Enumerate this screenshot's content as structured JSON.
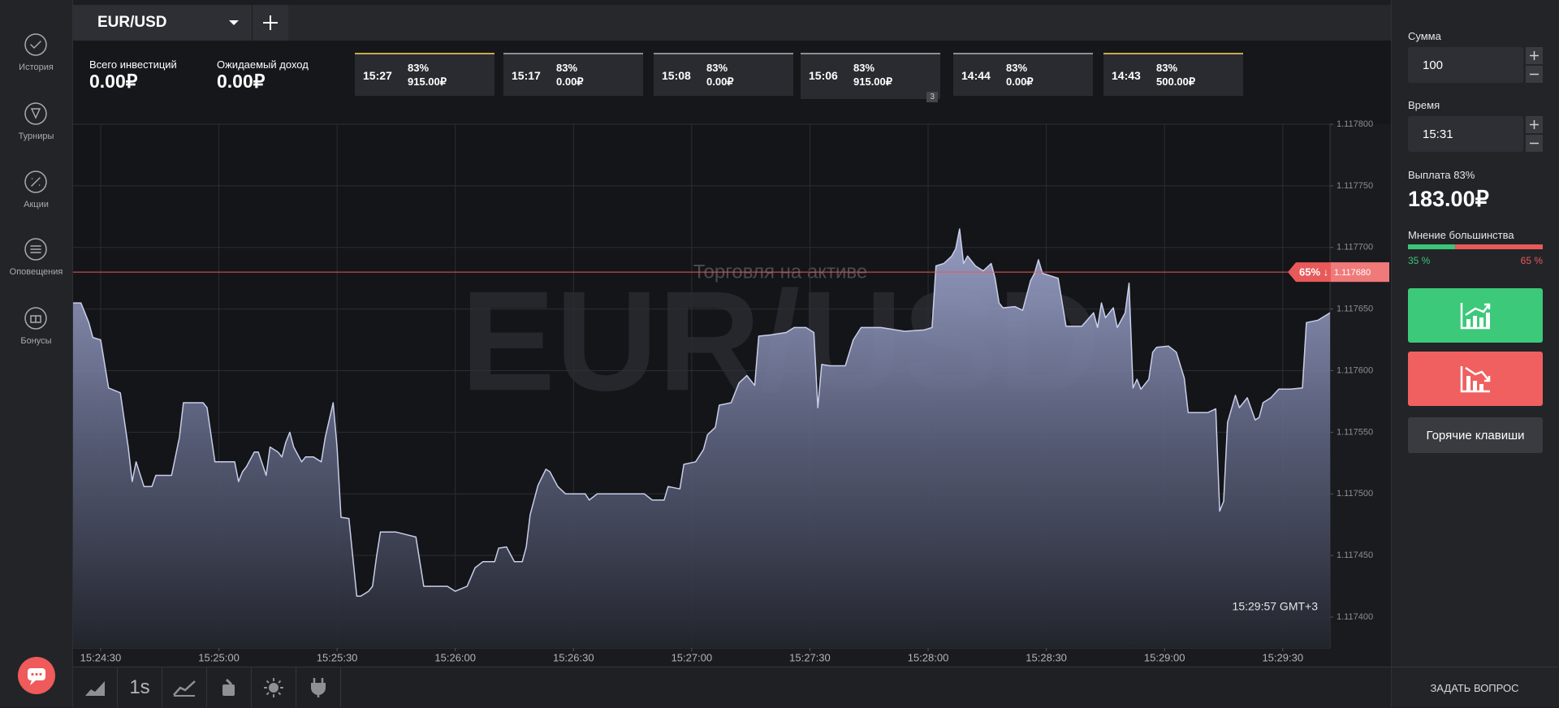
{
  "sidebar": {
    "items": [
      "История",
      "Турниры",
      "Акции",
      "Оповещения",
      "Бонусы"
    ]
  },
  "tab": {
    "asset": "EUR/USD"
  },
  "summary": [
    {
      "label": "Всего инвестиций",
      "value": "0.00₽"
    },
    {
      "label": "Ожидаемый доход",
      "value": "0.00₽"
    }
  ],
  "trades": [
    {
      "time": "15:27",
      "payout": "83%",
      "amount": "915.00₽",
      "border_color": "#c9a94c"
    },
    {
      "time": "15:17",
      "payout": "83%",
      "amount": "0.00₽",
      "border_color": "#8d8e93"
    },
    {
      "time": "15:08",
      "payout": "83%",
      "amount": "0.00₽",
      "border_color": "#8d8e93"
    },
    {
      "time": "15:06",
      "payout": "83%",
      "amount": "915.00₽",
      "border_color": "#8d8e93",
      "badge": "3"
    },
    {
      "time": "14:44",
      "payout": "83%",
      "amount": "0.00₽",
      "border_color": "#8d8e93"
    },
    {
      "time": "14:43",
      "payout": "83%",
      "amount": "500.00₽",
      "border_color": "#c9a94c"
    }
  ],
  "chart_data": {
    "type": "area",
    "watermark": "EUR/USD",
    "caption": "Торговля на активе",
    "clock": "15:29:57 GMT+3",
    "color": "#c9cee9",
    "grid": true,
    "x": [
      "15:24:23",
      "15:24:25",
      "15:24:27",
      "15:24:28",
      "15:24:30",
      "15:24:32",
      "15:24:35",
      "15:24:37",
      "15:24:38",
      "15:24:39",
      "15:24:41",
      "15:24:43",
      "15:24:44",
      "15:24:48",
      "15:24:50",
      "15:24:51",
      "15:24:56",
      "15:24:57",
      "15:24:59",
      "15:25:04",
      "15:25:05",
      "15:25:06",
      "15:25:07",
      "15:25:09",
      "15:25:10",
      "15:25:12",
      "15:25:13",
      "15:25:15",
      "15:25:16",
      "15:25:17",
      "15:25:18",
      "15:25:19",
      "15:25:21",
      "15:25:22",
      "15:25:24",
      "15:25:26",
      "15:25:27",
      "15:25:29",
      "15:25:30",
      "15:25:31",
      "15:25:33",
      "15:25:35",
      "15:25:36",
      "15:25:38",
      "15:25:39",
      "15:25:40",
      "15:25:41",
      "15:25:45",
      "15:25:50",
      "15:25:52",
      "15:25:58",
      "15:26:00",
      "15:26:03",
      "15:26:05",
      "15:26:07",
      "15:26:10",
      "15:26:11",
      "15:26:13",
      "15:26:15",
      "15:26:17",
      "15:26:18",
      "15:26:19",
      "15:26:21",
      "15:26:23",
      "15:26:24",
      "15:26:26",
      "15:26:28",
      "15:26:33",
      "15:26:34",
      "15:26:36",
      "15:26:48",
      "15:26:50",
      "15:26:53",
      "15:26:54",
      "15:26:57",
      "15:26:58",
      "15:27:01",
      "15:27:03",
      "15:27:04",
      "15:27:06",
      "15:27:07",
      "15:27:10",
      "15:27:12",
      "15:27:14",
      "15:27:16",
      "15:27:17",
      "15:27:20",
      "15:27:24",
      "15:27:26",
      "15:27:29",
      "15:27:31",
      "15:27:32",
      "15:27:33",
      "15:27:35",
      "15:27:39",
      "15:27:41",
      "15:27:43",
      "15:27:48",
      "15:27:54",
      "15:27:59",
      "15:28:01",
      "15:28:02",
      "15:28:04",
      "15:28:06",
      "15:28:07",
      "15:28:08",
      "15:28:09",
      "15:28:10",
      "15:28:12",
      "15:28:14",
      "15:28:16",
      "15:28:17",
      "15:28:18",
      "15:28:19",
      "15:28:22",
      "15:28:24",
      "15:28:26",
      "15:28:27",
      "15:28:28",
      "15:28:29",
      "15:28:33",
      "15:28:35",
      "15:28:39",
      "15:28:42",
      "15:28:43",
      "15:28:44",
      "15:28:45",
      "15:28:47",
      "15:28:48",
      "15:28:50",
      "15:28:51",
      "15:28:52",
      "15:28:53",
      "15:28:54",
      "15:28:56",
      "15:28:57",
      "15:28:58",
      "15:29:01",
      "15:29:03",
      "15:29:05",
      "15:29:06",
      "15:29:11",
      "15:29:13",
      "15:29:14",
      "15:29:15",
      "15:29:16",
      "15:29:18",
      "15:29:19",
      "15:29:21",
      "15:29:23",
      "15:29:24",
      "15:29:25",
      "15:29:27",
      "15:29:29",
      "15:29:32",
      "15:29:35",
      "15:29:36",
      "15:29:39",
      "15:29:42"
    ],
    "values": [
      1.117655,
      1.117655,
      1.117639,
      1.117627,
      1.117625,
      1.117586,
      1.117582,
      1.117538,
      1.11751,
      1.117526,
      1.117506,
      1.117506,
      1.117515,
      1.117515,
      1.117546,
      1.117574,
      1.117574,
      1.11757,
      1.117526,
      1.117526,
      1.11751,
      1.117518,
      1.117522,
      1.117534,
      1.117534,
      1.117515,
      1.117538,
      1.117534,
      1.11753,
      1.117542,
      1.11755,
      1.117538,
      1.117526,
      1.11753,
      1.11753,
      1.117526,
      1.117546,
      1.117574,
      1.117538,
      1.117481,
      1.11748,
      1.117417,
      1.117417,
      1.117421,
      1.117425,
      1.117449,
      1.117469,
      1.117469,
      1.117465,
      1.117425,
      1.117425,
      1.117421,
      1.117425,
      1.11744,
      1.117445,
      1.117445,
      1.117456,
      1.117457,
      1.117445,
      1.117445,
      1.117457,
      1.117483,
      1.117507,
      1.11752,
      1.117518,
      1.117506,
      1.1175,
      1.1175,
      1.117495,
      1.1175,
      1.1175,
      1.117495,
      1.117495,
      1.117506,
      1.117504,
      1.117524,
      1.117526,
      1.117536,
      1.117548,
      1.117554,
      1.117572,
      1.117574,
      1.11759,
      1.117596,
      1.117588,
      1.117628,
      1.117629,
      1.117631,
      1.117635,
      1.117635,
      1.117631,
      1.11757,
      1.117605,
      1.117604,
      1.117604,
      1.117625,
      1.117635,
      1.117635,
      1.117632,
      1.117633,
      1.117635,
      1.117685,
      1.117687,
      1.117693,
      1.117699,
      1.117715,
      1.117687,
      1.117693,
      1.117685,
      1.117681,
      1.117687,
      1.117675,
      1.117655,
      1.117651,
      1.117652,
      1.117649,
      1.117673,
      1.117679,
      1.11769,
      1.117679,
      1.117675,
      1.117636,
      1.117636,
      1.117647,
      1.117635,
      1.117655,
      1.117643,
      1.117651,
      1.117635,
      1.117647,
      1.117671,
      1.117586,
      1.117593,
      1.117585,
      1.117593,
      1.117615,
      1.117619,
      1.11762,
      1.117615,
      1.117594,
      1.117566,
      1.117566,
      1.117569,
      1.117486,
      1.117494,
      1.117558,
      1.11758,
      1.11757,
      1.117578,
      1.11756,
      1.117562,
      1.117574,
      1.117578,
      1.117585,
      1.117585,
      1.117586,
      1.117639,
      1.117641,
      1.117647
    ],
    "xlim": [
      "15:24:23",
      "15:29:42"
    ],
    "xticks": [
      "15:24:30",
      "15:25:00",
      "15:25:30",
      "15:26:00",
      "15:26:30",
      "15:27:00",
      "15:27:30",
      "15:28:00",
      "15:28:30",
      "15:29:00",
      "15:29:30"
    ],
    "ylim": [
      1.117375,
      1.1178
    ],
    "yticks": [
      {
        "value": 1.1174,
        "label": "1.117400"
      },
      {
        "value": 1.11745,
        "label": "1.117450"
      },
      {
        "value": 1.1175,
        "label": "1.117500"
      },
      {
        "value": 1.11755,
        "label": "1.117550"
      },
      {
        "value": 1.1176,
        "label": "1.117600"
      },
      {
        "value": 1.11765,
        "label": "1.117650"
      },
      {
        "value": 1.1177,
        "label": "1.117700"
      },
      {
        "value": 1.11775,
        "label": "1.117750"
      },
      {
        "value": 1.1178,
        "label": "1.117800"
      }
    ],
    "reference_line": {
      "value": 1.11768,
      "label": "1.117680",
      "tag": "65% ↓",
      "color": "#e85a5a"
    }
  },
  "right_panel": {
    "amount_label": "Сумма",
    "amount": "100",
    "time_label": "Время",
    "time": "15:31",
    "payout_label": "Выплата 83%",
    "payout": "183.00₽",
    "majority": {
      "title": "Мнение большинства",
      "values": [
        35,
        65
      ],
      "value_labels": [
        "35 %",
        "65 %"
      ],
      "colors": [
        "#3bc47a",
        "#e85a5a"
      ]
    },
    "hotkeys": "Горячие клавиши"
  },
  "toolbar": {
    "period": "1s"
  },
  "footer": {
    "ask": "ЗАДАТЬ ВОПРОС"
  }
}
